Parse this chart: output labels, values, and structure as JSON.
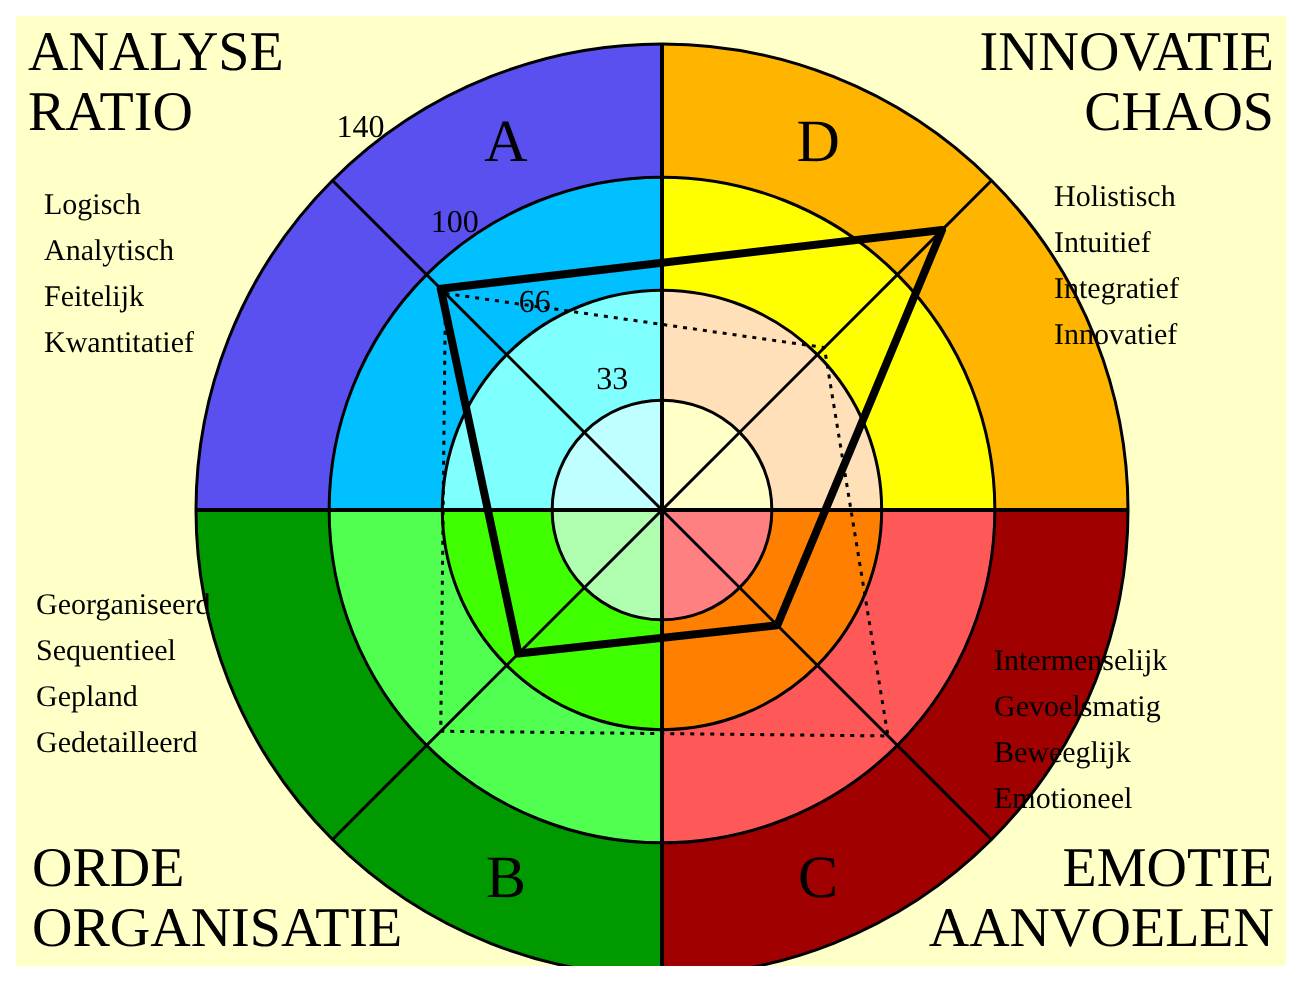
{
  "chart_data": {
    "type": "radar",
    "categories": [
      "A",
      "D",
      "C",
      "B"
    ],
    "series": [
      {
        "color": "#000000",
        "values": [
          94,
          119,
          49,
          61
        ],
        "line_style": "solid"
      },
      {
        "color": "#000000",
        "values": [
          92,
          69,
          96,
          94
        ],
        "line_style": "dotted"
      }
    ],
    "ylim": [
      0,
      140
    ],
    "yticks": [
      33,
      66,
      100,
      140
    ],
    "grid": true,
    "legend": false,
    "marker": "none",
    "annotations": [
      "ANALYSE\nRATIO",
      "Logisch\nAnalytisch\nFeitelijk\nKwantitatief",
      "INNOVATIE\nCHAOS",
      "Holistisch\nIntuitief\nIntegratief\nInnovatief",
      "Georganiseerd\nSequentieel\nGepland\nGedetailleerd",
      "ORDE\nORGANISATIE",
      "Intermenselijk\nGevoelsmatig\nBeweeglijk\nEmotioneel",
      "EMOTIE\nAANVOELEN"
    ]
  }
}
